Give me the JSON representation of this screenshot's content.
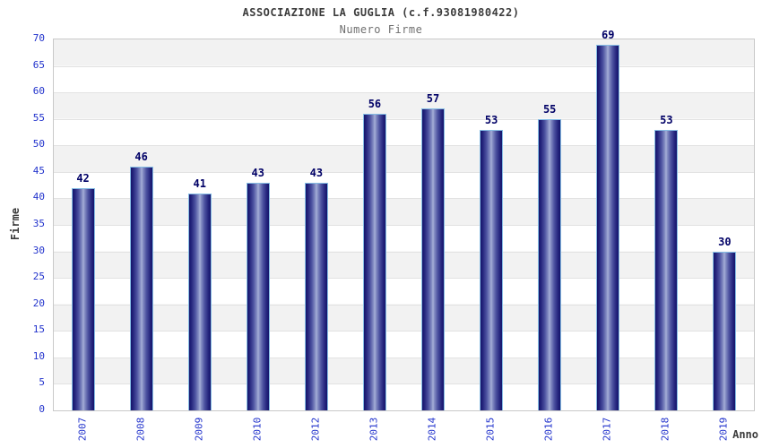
{
  "header": {
    "title": "ASSOCIAZIONE LA GUGLIA (c.f.93081980422)",
    "subtitle": "Numero Firme"
  },
  "axes": {
    "y_title": "Firme",
    "x_title": "Anno"
  },
  "colors": {
    "tick_label": "#2233cc",
    "value_label": "#000066",
    "bar_edge": "#15156b",
    "bar_center": "#aab3da",
    "bar_border": "#85bce4",
    "band_gray": "#f2f2f2",
    "band_white": "#ffffff",
    "plot_border": "#c9c9c9",
    "title_text": "#3c3c3c",
    "subtitle_text": "#707070"
  },
  "chart_data": {
    "type": "bar",
    "title": "ASSOCIAZIONE LA GUGLIA (c.f.93081980422)",
    "subtitle": "Numero Firme",
    "xlabel": "Anno",
    "ylabel": "Firme",
    "categories": [
      "2007",
      "2008",
      "2009",
      "2010",
      "2012",
      "2013",
      "2014",
      "2015",
      "2016",
      "2017",
      "2018",
      "2019"
    ],
    "values": [
      42,
      46,
      41,
      43,
      43,
      56,
      57,
      53,
      55,
      69,
      53,
      30
    ],
    "ylim": [
      0,
      70
    ],
    "ytick_step": 5,
    "yticks": [
      0,
      5,
      10,
      15,
      20,
      25,
      30,
      35,
      40,
      45,
      50,
      55,
      60,
      65,
      70
    ],
    "grid": true,
    "bands_alternating": true,
    "legend_position": "none"
  }
}
